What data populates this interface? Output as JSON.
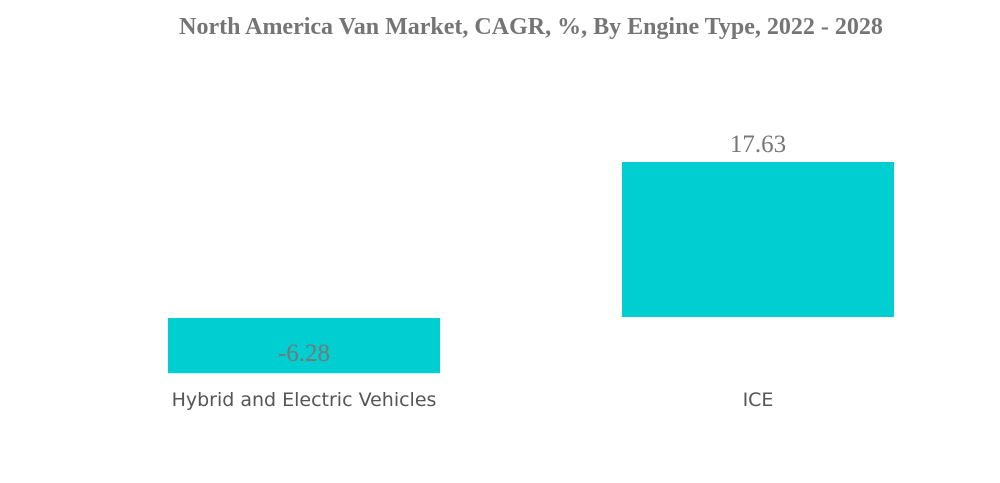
{
  "chart_data": {
    "type": "bar",
    "title": "North America Van Market, CAGR, %, By Engine Type, 2022 - 2028",
    "categories": [
      "Hybrid and Electric Vehicles",
      "ICE"
    ],
    "values": [
      -6.28,
      17.63
    ],
    "value_labels": [
      "-6.28",
      "17.63"
    ],
    "xlabel": "",
    "ylabel": "",
    "ylim": [
      -6.28,
      17.63
    ],
    "grid": false,
    "bar_color": "#00CED1"
  }
}
